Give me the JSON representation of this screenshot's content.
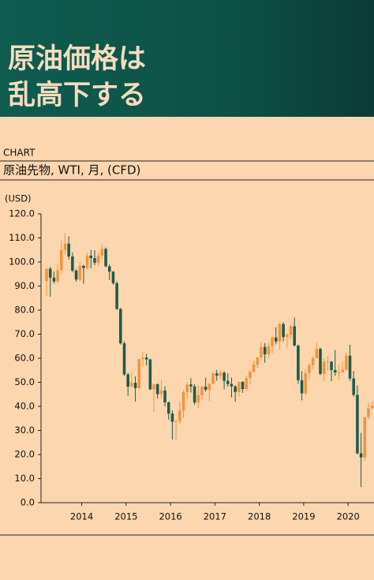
{
  "header": {
    "title": [
      "原油価格は",
      "乱高下する"
    ]
  },
  "section": "CHART",
  "chart_data": {
    "type": "candlestick",
    "title": "原油先物, WTI, 月, (CFD)",
    "y_label": "(USD)",
    "x": [
      "2013-03",
      "2013-04",
      "2013-05",
      "2013-06",
      "2013-07",
      "2013-08",
      "2013-09",
      "2013-10",
      "2013-11",
      "2013-12",
      "2014-01",
      "2014-02",
      "2014-03",
      "2014-04",
      "2014-05",
      "2014-06",
      "2014-07",
      "2014-08",
      "2014-09",
      "2014-10",
      "2014-11",
      "2014-12",
      "2015-01",
      "2015-02",
      "2015-03",
      "2015-04",
      "2015-05",
      "2015-06",
      "2015-07",
      "2015-08",
      "2015-09",
      "2015-10",
      "2015-11",
      "2015-12",
      "2016-01",
      "2016-02",
      "2016-03",
      "2016-04",
      "2016-05",
      "2016-06",
      "2016-07",
      "2016-08",
      "2016-09",
      "2016-10",
      "2016-11",
      "2016-12",
      "2017-01",
      "2017-02",
      "2017-03",
      "2017-04",
      "2017-05",
      "2017-06",
      "2017-07",
      "2017-08",
      "2017-09",
      "2017-10",
      "2017-11",
      "2017-12",
      "2018-01",
      "2018-02",
      "2018-03",
      "2018-04",
      "2018-05",
      "2018-06",
      "2018-07",
      "2018-08",
      "2018-09",
      "2018-10",
      "2018-11",
      "2018-12",
      "2019-01",
      "2019-02",
      "2019-03",
      "2019-04",
      "2019-05",
      "2019-06",
      "2019-07",
      "2019-08",
      "2019-09",
      "2019-10",
      "2019-11",
      "2019-12",
      "2020-01",
      "2020-02",
      "2020-03",
      "2020-04",
      "2020-05",
      "2020-06",
      "2020-07"
    ],
    "open": [
      92,
      97.2,
      93.5,
      91.9,
      96.6,
      105,
      107.6,
      102.3,
      96.4,
      92.7,
      98.4,
      97.5,
      102.6,
      101.6,
      99.7,
      102.7,
      105.4,
      98.2,
      96,
      91.2,
      80.5,
      66.2,
      53.3,
      48.2,
      49.8,
      47.6,
      59.6,
      60.3,
      59.5,
      47.1,
      49.2,
      45.1,
      46.6,
      41.7,
      37,
      33.6,
      33.8,
      38.3,
      45.9,
      49.1,
      48.3,
      41.6,
      44.7,
      48.2,
      46.9,
      49.4,
      53.7,
      52.8,
      54,
      50.6,
      49.3,
      48.3,
      46,
      50.2,
      47.2,
      51.7,
      54.4,
      57.4,
      60.4,
      64.7,
      61.6,
      64.9,
      68.6,
      67,
      74.2,
      68.8,
      69.8,
      73.3,
      65.3,
      50.9,
      45.4,
      53.8,
      57.2,
      60.1,
      63.9,
      53.5,
      58.5,
      58.6,
      55.1,
      54.1,
      54.2,
      55.2,
      61.1,
      51.6,
      44.8,
      20.5,
      18.8,
      35.5,
      39.3
    ],
    "high": [
      97.3,
      98,
      96,
      99,
      108.9,
      112,
      110.7,
      104,
      97,
      100,
      98.9,
      104,
      105,
      104.9,
      104.2,
      107.7,
      106,
      99,
      96.2,
      92,
      80.9,
      67,
      54,
      54.2,
      52.5,
      59.9,
      62.6,
      61.8,
      59.8,
      49.3,
      49.5,
      50.9,
      48.4,
      42,
      38.4,
      34.7,
      41.9,
      46.8,
      50.2,
      51.7,
      49.3,
      48.8,
      48.4,
      51.9,
      49.6,
      54.5,
      55.2,
      54.9,
      54.6,
      53.8,
      52,
      48.8,
      50.4,
      50.4,
      52.9,
      55,
      59,
      60.5,
      66.7,
      66.3,
      66.6,
      69.6,
      72.9,
      74.5,
      75,
      70.4,
      73.9,
      76.9,
      65.7,
      54.6,
      55.5,
      57.8,
      60.7,
      66.6,
      64.4,
      59.9,
      60.9,
      58.8,
      63.4,
      57.5,
      58.7,
      62.3,
      65.6,
      54.7,
      48.7,
      29,
      35.6,
      41.6,
      42
    ],
    "low": [
      86,
      85.6,
      91,
      91,
      95,
      103,
      101,
      95.8,
      91.8,
      92,
      91,
      96.9,
      97.4,
      98.6,
      98.5,
      101.5,
      97.8,
      92.5,
      90.5,
      80,
      65.7,
      52.7,
      44.4,
      48,
      42,
      47,
      56.5,
      57,
      46.7,
      37.7,
      43.2,
      43.5,
      40,
      34.5,
      26.2,
      26,
      32.5,
      35.2,
      43,
      45.8,
      40.6,
      39.2,
      42.5,
      46.1,
      42.2,
      49.2,
      50.7,
      51.2,
      47.1,
      48.2,
      43.8,
      42,
      44.1,
      45.6,
      46.4,
      49.1,
      54.2,
      55.8,
      59.1,
      58.1,
      59.9,
      62,
      65.8,
      63.6,
      67,
      64.4,
      67.7,
      64.9,
      49.4,
      42.5,
      44.4,
      51.2,
      55.5,
      59.9,
      53,
      50.6,
      55,
      50.5,
      52.8,
      50.9,
      54,
      55,
      50.6,
      44,
      20.1,
      6.5,
      17.3,
      34.4,
      38.7
    ],
    "close": [
      97.2,
      93.5,
      91.9,
      96.6,
      105,
      107.6,
      102.3,
      96.4,
      92.7,
      98.4,
      97.5,
      102.6,
      101.6,
      99.7,
      102.7,
      105.4,
      98.2,
      96,
      91.2,
      80.5,
      66.2,
      53.3,
      48.2,
      49.8,
      47.6,
      59.6,
      60.3,
      59.5,
      47.1,
      49.2,
      45.1,
      46.6,
      41.7,
      37,
      33.6,
      33.8,
      38.3,
      45.9,
      49.1,
      48.3,
      41.6,
      44.7,
      48.2,
      46.9,
      49.4,
      53.7,
      52.8,
      54,
      50.6,
      49.3,
      48.3,
      46,
      50.2,
      47.2,
      51.7,
      54.4,
      57.4,
      60.4,
      64.7,
      61.6,
      64.9,
      68.6,
      67,
      74.2,
      68.8,
      69.8,
      73.3,
      65.3,
      50.9,
      45.4,
      53.8,
      57.2,
      60.1,
      63.9,
      53.5,
      58.5,
      58.6,
      55.1,
      54.1,
      54.2,
      55.2,
      61.1,
      51.6,
      44.8,
      20.5,
      18.8,
      35.5,
      39.3,
      40.3
    ],
    "up_color": "#ef9540",
    "down_color": "#1d5b4c",
    "xlim": [
      "2013-02",
      "2020-07"
    ],
    "xticks": [
      "2014",
      "2015",
      "2016",
      "2017",
      "2018",
      "2019",
      "2020"
    ],
    "ylim": [
      0,
      120
    ],
    "yticks": [
      {
        "value": 0,
        "label": "0.0"
      },
      {
        "value": 10,
        "label": "10.0"
      },
      {
        "value": 20,
        "label": "20.0"
      },
      {
        "value": 30,
        "label": "30.0"
      },
      {
        "value": 40,
        "label": "40.0"
      },
      {
        "value": 50,
        "label": "50.0"
      },
      {
        "value": 60,
        "label": "60.0"
      },
      {
        "value": 70,
        "label": "70.0"
      },
      {
        "value": 80,
        "label": "80.0"
      },
      {
        "value": 90,
        "label": "90.0"
      },
      {
        "value": 100,
        "label": "100.0"
      },
      {
        "value": 110,
        "label": "110.0"
      },
      {
        "value": 120,
        "label": "120.0"
      }
    ]
  }
}
